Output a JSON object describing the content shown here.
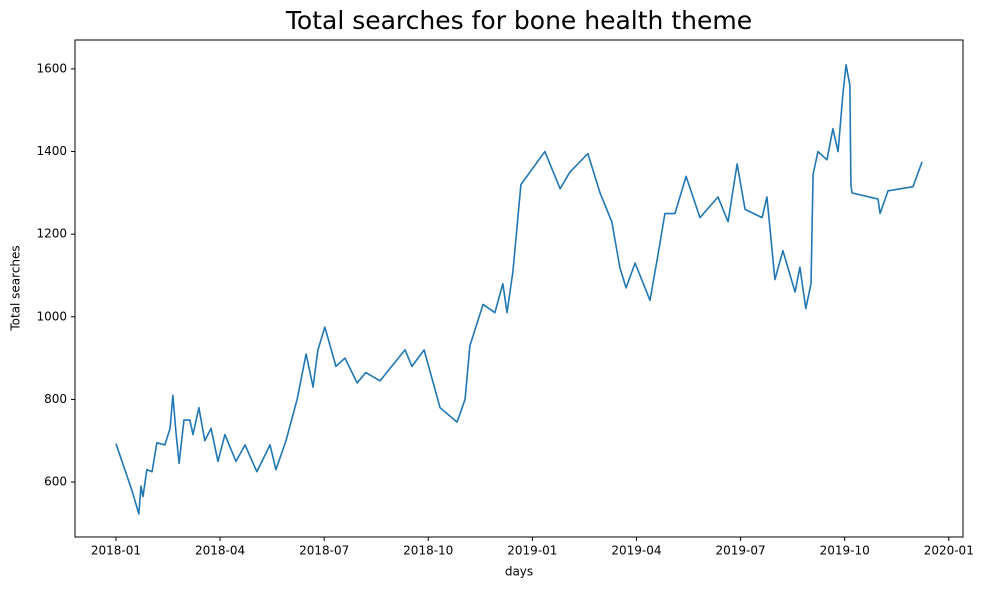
{
  "chart_data": {
    "type": "line",
    "title": "Total searches for bone health theme",
    "x_label": "days",
    "y_label": "Total searches",
    "color": "#1f77b4",
    "x": [
      0,
      0.46,
      0.66,
      0.72,
      0.78,
      0.89,
      1.04,
      1.18,
      1.41,
      1.56,
      1.64,
      1.73,
      1.82,
      1.96,
      2.13,
      2.22,
      2.39,
      2.56,
      2.74,
      2.94,
      3.14,
      3.46,
      3.72,
      4.06,
      4.44,
      4.61,
      4.9,
      5.22,
      5.48,
      5.68,
      5.82,
      6.02,
      6.34,
      6.6,
      6.95,
      7.2,
      7.61,
      8.33,
      8.53,
      8.88,
      9.11,
      9.34,
      9.83,
      10.06,
      10.2,
      10.58,
      10.92,
      11.15,
      11.27,
      11.44,
      11.67,
      12.36,
      12.8,
      13.08,
      13.6,
      13.95,
      14.29,
      14.52,
      14.7,
      14.96,
      15.39,
      15.62,
      15.82,
      16.11,
      16.43,
      16.83,
      17.35,
      17.64,
      17.9,
      18.13,
      18.62,
      18.76,
      18.99,
      19.22,
      19.57,
      19.71,
      19.88,
      20.03,
      20.09,
      20.23,
      20.49,
      20.66,
      20.81,
      20.95,
      21.04,
      21.15,
      21.18,
      21.21,
      21.96,
      22.02,
      22.25,
      22.97,
      23.23
    ],
    "values": [
      693,
      580,
      523,
      590,
      565,
      630,
      625,
      695,
      690,
      730,
      810,
      720,
      645,
      750,
      750,
      715,
      780,
      700,
      730,
      650,
      715,
      650,
      690,
      625,
      690,
      630,
      700,
      800,
      910,
      830,
      920,
      975,
      880,
      900,
      840,
      865,
      845,
      920,
      880,
      920,
      850,
      780,
      745,
      800,
      930,
      1030,
      1010,
      1080,
      1010,
      1110,
      1320,
      1400,
      1310,
      1350,
      1395,
      1300,
      1230,
      1120,
      1070,
      1130,
      1040,
      1150,
      1250,
      1250,
      1340,
      1240,
      1290,
      1230,
      1370,
      1260,
      1240,
      1290,
      1090,
      1160,
      1060,
      1120,
      1020,
      1080,
      1345,
      1400,
      1380,
      1455,
      1400,
      1540,
      1610,
      1560,
      1320,
      1300,
      1285,
      1250,
      1305,
      1315,
      1375
    ],
    "xlim": [
      -1.18,
      24.41
    ],
    "ylim": [
      467,
      1670
    ],
    "xticks": [
      {
        "value": 0,
        "label": "2018-01"
      },
      {
        "value": 3,
        "label": "2018-04"
      },
      {
        "value": 6,
        "label": "2018-07"
      },
      {
        "value": 9,
        "label": "2018-10"
      },
      {
        "value": 12,
        "label": "2019-01"
      },
      {
        "value": 15,
        "label": "2019-04"
      },
      {
        "value": 18,
        "label": "2019-07"
      },
      {
        "value": 21,
        "label": "2019-10"
      },
      {
        "value": 24,
        "label": "2020-01"
      }
    ],
    "yticks": [
      600,
      800,
      1000,
      1200,
      1400,
      1600
    ]
  }
}
